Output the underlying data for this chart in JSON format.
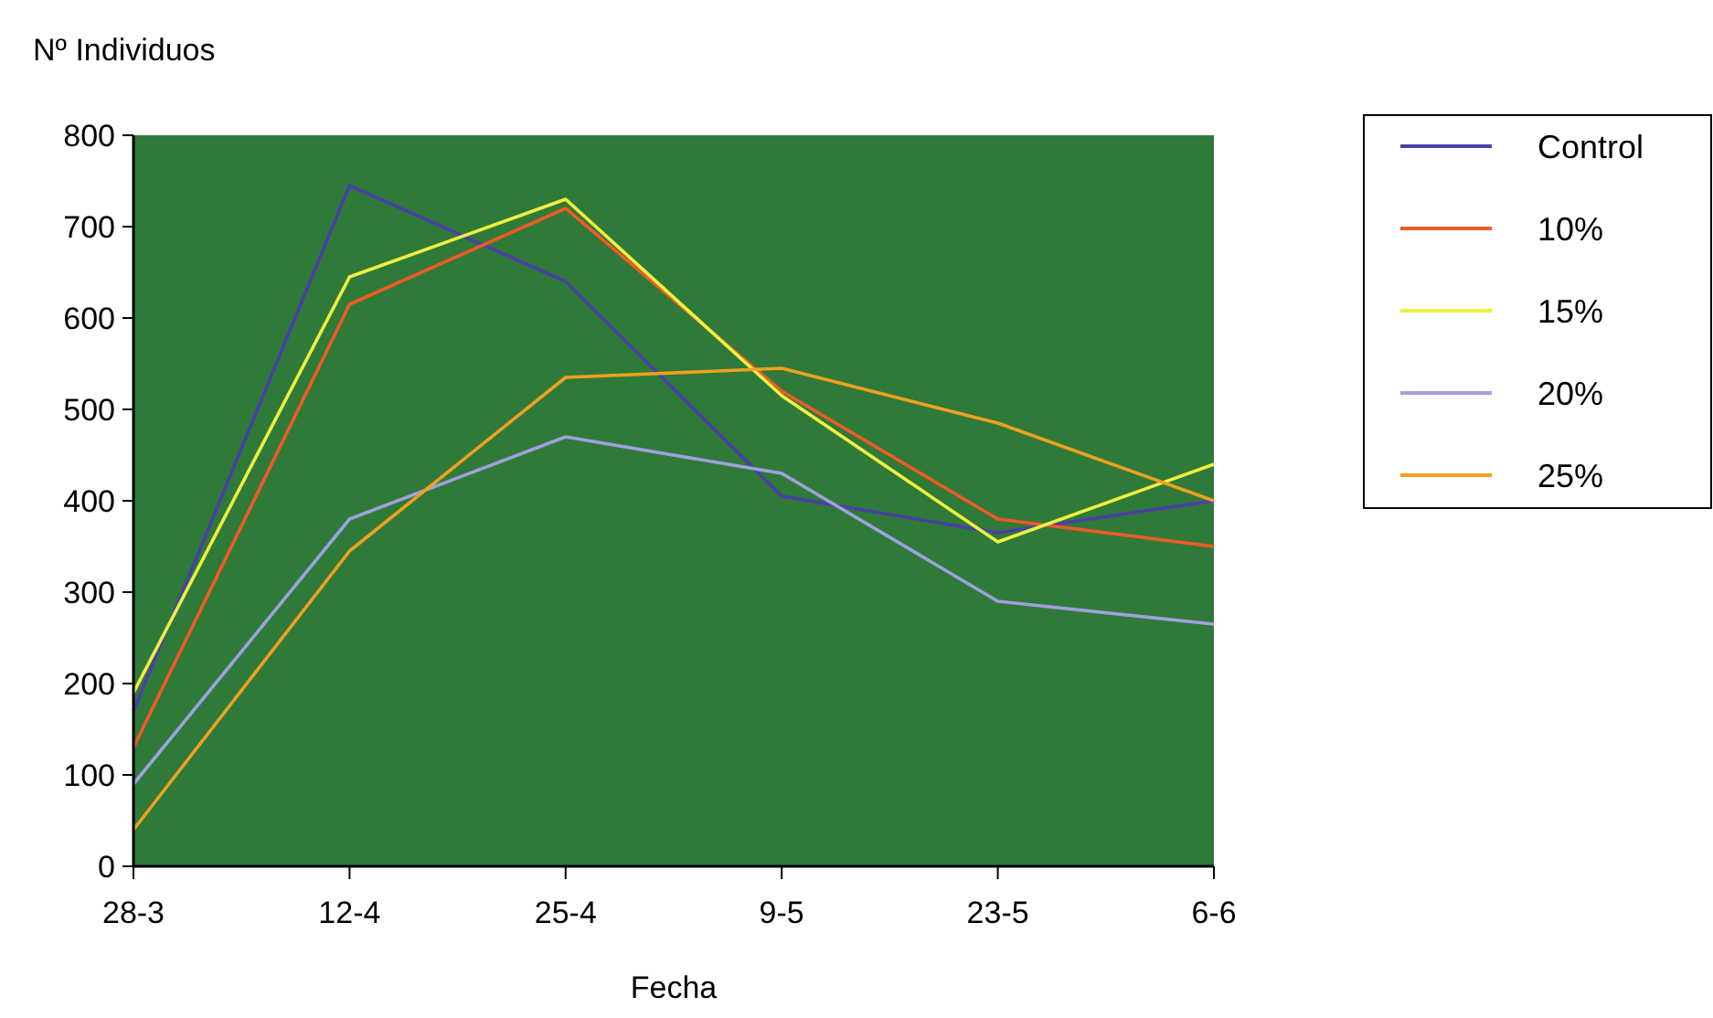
{
  "chart_data": {
    "type": "line",
    "ylabel": "Nº Individuos",
    "xlabel": "Fecha",
    "categories": [
      "28-3",
      "12-4",
      "25-4",
      "9-5",
      "23-5",
      "6-6"
    ],
    "ylim": [
      0,
      800
    ],
    "yticks": [
      0,
      100,
      200,
      300,
      400,
      500,
      600,
      700,
      800
    ],
    "legend": "right",
    "grid": false,
    "marker": "none",
    "line_style": "solid",
    "series": [
      {
        "name": "Control",
        "color": "#4b3fa8",
        "values": [
          170,
          745,
          640,
          405,
          365,
          400
        ]
      },
      {
        "name": "10%",
        "color": "#f05a28",
        "values": [
          130,
          615,
          720,
          520,
          380,
          350
        ]
      },
      {
        "name": "15%",
        "color": "#f0f040",
        "values": [
          190,
          645,
          730,
          515,
          355,
          440
        ]
      },
      {
        "name": "20%",
        "color": "#a0a0e0",
        "values": [
          90,
          380,
          470,
          430,
          290,
          265
        ]
      },
      {
        "name": "25%",
        "color": "#f0a020",
        "values": [
          40,
          345,
          535,
          545,
          485,
          400
        ]
      }
    ]
  }
}
